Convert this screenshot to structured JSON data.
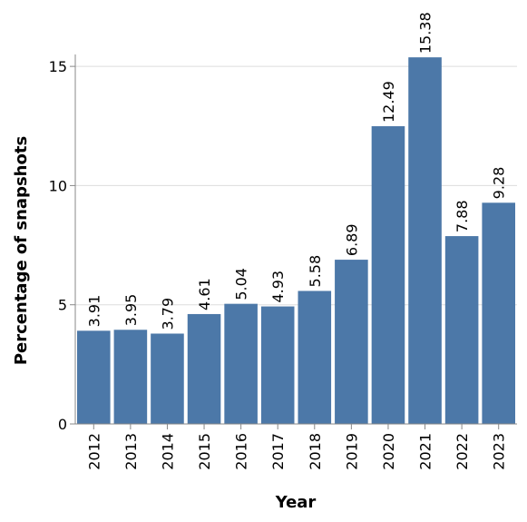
{
  "chart_data": {
    "type": "bar",
    "categories": [
      "2012",
      "2013",
      "2014",
      "2015",
      "2016",
      "2017",
      "2018",
      "2019",
      "2020",
      "2021",
      "2022",
      "2023"
    ],
    "values": [
      3.91,
      3.95,
      3.79,
      4.61,
      5.04,
      4.93,
      5.58,
      6.89,
      12.49,
      15.38,
      7.88,
      9.28
    ],
    "data_labels": [
      "3.91",
      "3.95",
      "3.79",
      "4.61",
      "5.04",
      "4.93",
      "5.58",
      "6.89",
      "12.49",
      "15.38",
      "7.88",
      "9.28"
    ],
    "xlabel": "Year",
    "ylabel": "Percentage of snapshots",
    "ylim": [
      0,
      15.5
    ],
    "yticks": [
      0,
      5,
      10,
      15
    ],
    "ytick_labels": [
      "0",
      "5",
      "10",
      "15"
    ],
    "grid": true,
    "bar_color": "#4c78a8"
  }
}
